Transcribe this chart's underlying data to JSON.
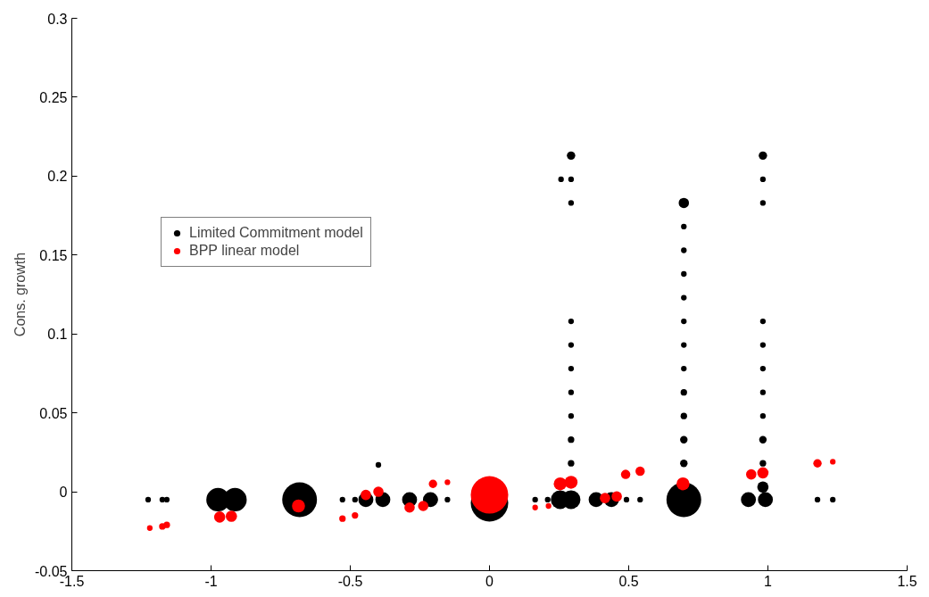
{
  "chart_data": {
    "type": "bubble",
    "ylabel": "Cons. growth",
    "xlim": [
      -1.5,
      1.5
    ],
    "ylim": [
      -0.05,
      0.3
    ],
    "xticks": [
      -1.5,
      -1,
      -0.5,
      0,
      0.5,
      1,
      1.5
    ],
    "yticks": [
      -0.05,
      0,
      0.05,
      0.1,
      0.15,
      0.2,
      0.25,
      0.3
    ],
    "grid": false,
    "legend": "left",
    "series": [
      {
        "name": "Limited Commitment model",
        "color": "#000000",
        "x": [
          -1.226,
          -1.175,
          -1.159,
          -0.975,
          -0.914,
          -0.682,
          -0.528,
          -0.483,
          -0.444,
          -0.383,
          -0.399,
          -0.287,
          -0.212,
          -0.196,
          -0.151,
          0,
          0.164,
          0.209,
          0.254,
          0.293,
          0.383,
          0.438,
          0.492,
          0.541,
          0.698,
          0.93,
          0.991,
          0.982,
          1.178,
          1.233,
          0.293,
          0.293,
          0.293,
          0.293,
          0.293,
          0.293,
          0.293,
          0.293,
          0.293,
          0.293,
          0.257,
          0.698,
          0.698,
          0.698,
          0.698,
          0.698,
          0.698,
          0.698,
          0.698,
          0.698,
          0.698,
          0.698,
          0.698,
          0.982,
          0.982,
          0.982,
          0.982,
          0.982,
          0.982,
          0.982,
          0.982,
          0.982,
          0.982
        ],
        "values": [
          -0.005,
          -0.005,
          -0.005,
          -0.005,
          -0.005,
          -0.005,
          -0.005,
          -0.005,
          -0.005,
          -0.005,
          0.017,
          -0.005,
          -0.005,
          -0.005,
          -0.005,
          -0.007,
          -0.005,
          -0.005,
          -0.005,
          -0.005,
          -0.005,
          -0.005,
          -0.005,
          -0.005,
          -0.005,
          -0.005,
          -0.005,
          0.003,
          -0.005,
          -0.005,
          0.018,
          0.033,
          0.048,
          0.063,
          0.078,
          0.093,
          0.108,
          0.183,
          0.198,
          0.213,
          0.198,
          0.018,
          0.033,
          0.048,
          0.063,
          0.078,
          0.093,
          0.108,
          0.123,
          0.138,
          0.153,
          0.168,
          0.183,
          0.018,
          0.033,
          0.048,
          0.063,
          0.078,
          0.093,
          0.108,
          0.183,
          0.198,
          0.213
        ],
        "sizes": [
          0.0225,
          0.0225,
          0.0225,
          0.39,
          0.39,
          0.86,
          0.0225,
          0.0225,
          0.16,
          0.16,
          0.0225,
          0.16,
          0.16,
          0.0225,
          0.0225,
          1.0,
          0.0225,
          0.0225,
          0.25,
          0.25,
          0.16,
          0.16,
          0.0225,
          0.0225,
          0.86,
          0.16,
          0.16,
          0.09,
          0.0225,
          0.0225,
          0.03,
          0.03,
          0.0225,
          0.0225,
          0.0225,
          0.0225,
          0.0225,
          0.0225,
          0.0225,
          0.05,
          0.0225,
          0.04,
          0.04,
          0.03,
          0.03,
          0.0225,
          0.0225,
          0.0225,
          0.0225,
          0.0225,
          0.0225,
          0.0225,
          0.076,
          0.03,
          0.04,
          0.0225,
          0.0225,
          0.0225,
          0.0225,
          0.0225,
          0.0225,
          0.0225,
          0.05
        ]
      },
      {
        "name": "BPP linear model",
        "color": "#ff0000",
        "x": [
          -1.22,
          -1.175,
          -1.159,
          -0.969,
          -0.927,
          -0.686,
          -0.528,
          -0.483,
          -0.444,
          -0.399,
          -0.287,
          -0.238,
          -0.203,
          -0.151,
          0,
          0.164,
          0.212,
          0.254,
          0.293,
          0.415,
          0.457,
          0.489,
          0.541,
          0.695,
          0.94,
          0.982,
          1.178,
          1.233
        ],
        "values": [
          -0.023,
          -0.022,
          -0.021,
          -0.016,
          -0.0155,
          -0.009,
          -0.017,
          -0.015,
          -0.002,
          0,
          -0.01,
          -0.009,
          0.005,
          0.006,
          -0.002,
          -0.01,
          -0.009,
          0.005,
          0.006,
          -0.004,
          -0.003,
          0.011,
          0.013,
          0.005,
          0.011,
          0.012,
          0.018,
          0.019
        ],
        "sizes": [
          0.0225,
          0.03,
          0.03,
          0.09,
          0.09,
          0.12,
          0.03,
          0.03,
          0.076,
          0.076,
          0.076,
          0.076,
          0.05,
          0.0225,
          1.0,
          0.0225,
          0.0225,
          0.12,
          0.12,
          0.076,
          0.076,
          0.0625,
          0.0625,
          0.12,
          0.076,
          0.09,
          0.05,
          0.0225
        ]
      }
    ]
  }
}
